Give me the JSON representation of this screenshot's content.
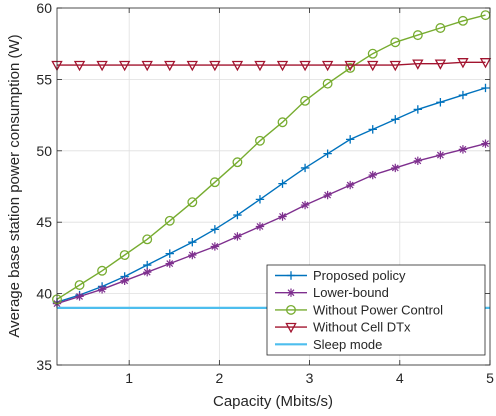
{
  "chart_data": {
    "type": "line",
    "xlabel": "Capacity (Mbits/s)",
    "ylabel": "Average base station power consumption (W)",
    "xlim": [
      0.2,
      5
    ],
    "ylim": [
      35,
      60
    ],
    "xticks": [
      1,
      2,
      3,
      4,
      5
    ],
    "yticks": [
      35,
      40,
      45,
      50,
      55,
      60
    ],
    "grid": true,
    "legend_position": "bottom-right",
    "x": [
      0.2,
      0.45,
      0.7,
      0.95,
      1.2,
      1.45,
      1.7,
      1.95,
      2.2,
      2.45,
      2.7,
      2.95,
      3.2,
      3.45,
      3.7,
      3.95,
      4.2,
      4.45,
      4.7,
      4.95
    ],
    "series": [
      {
        "name": "Proposed policy",
        "color": "#0072BD",
        "marker": "plus",
        "values": [
          39.4,
          39.9,
          40.5,
          41.2,
          42.0,
          42.8,
          43.6,
          44.5,
          45.5,
          46.6,
          47.7,
          48.8,
          49.8,
          50.8,
          51.5,
          52.2,
          52.9,
          53.4,
          53.9,
          54.4
        ]
      },
      {
        "name": "Lower-bound",
        "color": "#7E2F8E",
        "marker": "asterisk",
        "values": [
          39.3,
          39.8,
          40.3,
          40.9,
          41.5,
          42.1,
          42.7,
          43.3,
          44.0,
          44.7,
          45.4,
          46.2,
          46.9,
          47.6,
          48.3,
          48.8,
          49.3,
          49.7,
          50.1,
          50.5
        ]
      },
      {
        "name": "Without Power Control",
        "color": "#77AC30",
        "marker": "circle",
        "values": [
          39.6,
          40.6,
          41.6,
          42.7,
          43.8,
          45.1,
          46.4,
          47.8,
          49.2,
          50.7,
          52.0,
          53.5,
          54.7,
          55.8,
          56.8,
          57.6,
          58.1,
          58.6,
          59.1,
          59.5
        ]
      },
      {
        "name": "Without Cell DTx",
        "color": "#A2142F",
        "marker": "triangle-down",
        "values": [
          56.0,
          56.0,
          56.0,
          56.0,
          56.0,
          56.0,
          56.0,
          56.0,
          56.0,
          56.0,
          56.0,
          56.0,
          56.0,
          56.0,
          56.0,
          56.0,
          56.1,
          56.1,
          56.2,
          56.2
        ]
      },
      {
        "name": "Sleep mode",
        "color": "#4DBEEE",
        "marker": "none",
        "values": [
          39.0,
          39.0,
          39.0,
          39.0,
          39.0,
          39.0,
          39.0,
          39.0,
          39.0,
          39.0,
          39.0,
          39.0,
          39.0,
          39.0,
          39.0,
          39.0,
          39.0,
          39.0,
          39.0,
          39.0
        ]
      }
    ]
  }
}
